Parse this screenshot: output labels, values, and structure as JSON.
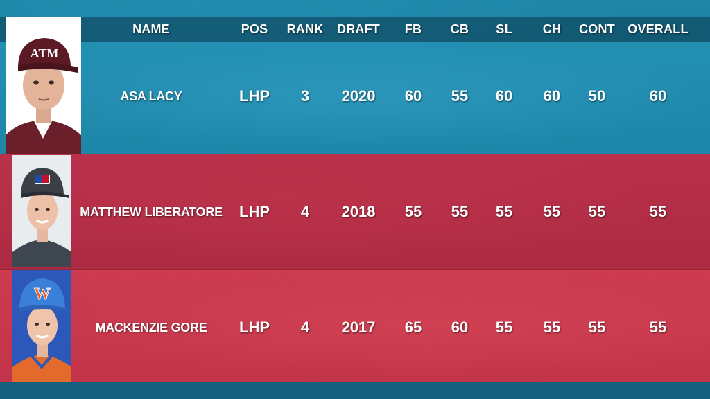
{
  "columns": [
    "NAME",
    "POS",
    "RANK",
    "DRAFT",
    "FB",
    "CB",
    "SL",
    "CH",
    "CONT",
    "OVERALL"
  ],
  "players": [
    {
      "name": "ASA LACY",
      "pos": "LHP",
      "rank": "3",
      "draft": "2020",
      "fb": "60",
      "cb": "55",
      "sl": "60",
      "ch": "60",
      "cont": "50",
      "overall": "60",
      "cap_logo": "ATM"
    },
    {
      "name": "MATTHEW LIBERATORE",
      "pos": "LHP",
      "rank": "4",
      "draft": "2018",
      "fb": "55",
      "cb": "55",
      "sl": "55",
      "ch": "55",
      "cont": "55",
      "overall": "55",
      "cap_logo": "MLB"
    },
    {
      "name": "MACKENZIE GORE",
      "pos": "LHP",
      "rank": "4",
      "draft": "2017",
      "fb": "65",
      "cb": "60",
      "sl": "55",
      "ch": "55",
      "cont": "55",
      "overall": "55",
      "cap_logo": "W"
    }
  ],
  "colors": {
    "teal_row": "#1e86a8",
    "red_row_dark": "#b02c45",
    "red_row_light": "#c8384d",
    "text": "#ffffff"
  }
}
